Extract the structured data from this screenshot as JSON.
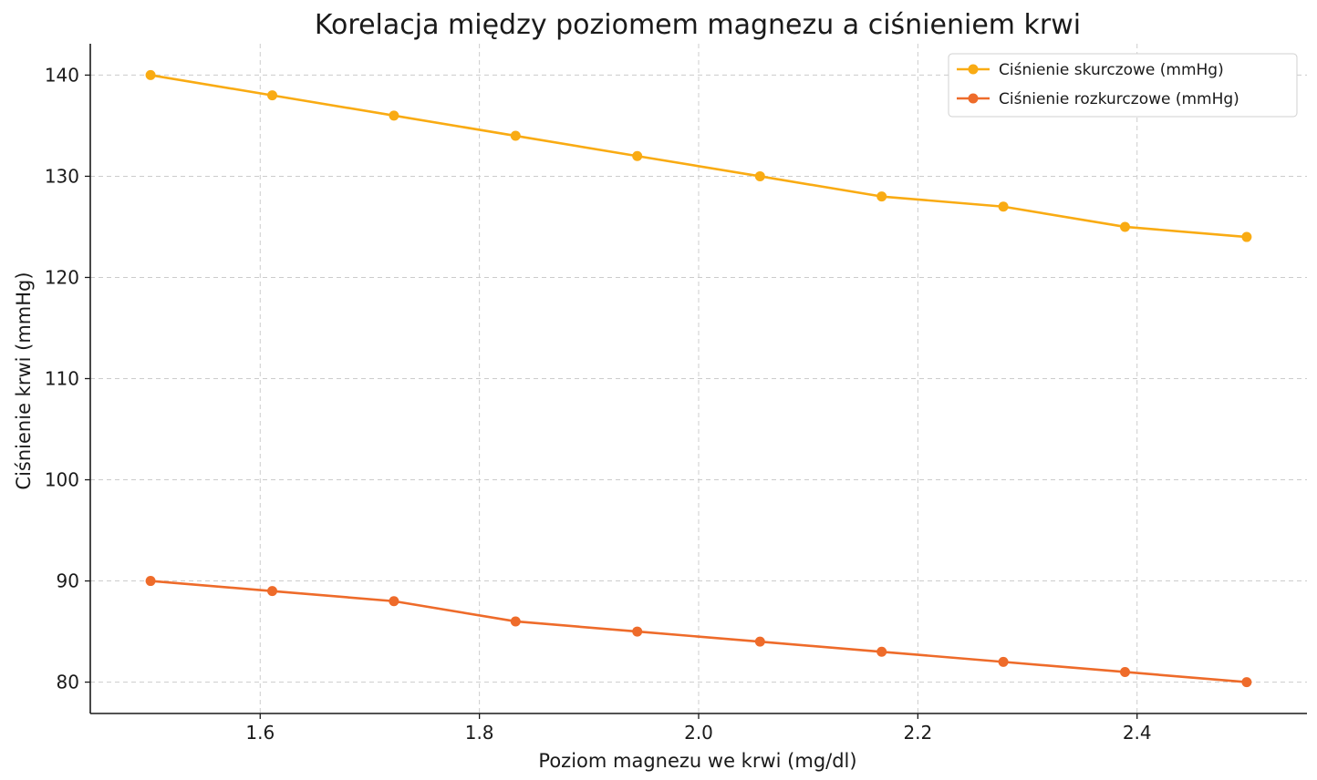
{
  "chart_data": {
    "type": "line",
    "title": "Korelacja między poziomem magnezu a ciśnieniem krwi",
    "xlabel": "Poziom magnezu we krwi (mg/dl)",
    "ylabel": "Ciśnienie krwi (mmHg)",
    "x": [
      1.5,
      1.611,
      1.722,
      1.833,
      1.944,
      2.056,
      2.167,
      2.278,
      2.389,
      2.5
    ],
    "xlim": [
      1.445,
      2.555
    ],
    "ylim": [
      76.9,
      143.1
    ],
    "xticks": [
      1.6,
      1.8,
      2.0,
      2.2,
      2.4
    ],
    "xtick_labels": [
      "1.6",
      "1.8",
      "2.0",
      "2.2",
      "2.4"
    ],
    "yticks": [
      80,
      90,
      100,
      110,
      120,
      130,
      140
    ],
    "ytick_labels": [
      "80",
      "90",
      "100",
      "110",
      "120",
      "130",
      "140"
    ],
    "grid": true,
    "legend_position": "top-right",
    "series": [
      {
        "name": "Ciśnienie skurczowe (mmHg)",
        "color": "#F9AB13",
        "values": [
          140,
          138,
          136,
          134,
          132,
          130,
          128,
          127,
          125,
          124
        ]
      },
      {
        "name": "Ciśnienie rozkurczowe (mmHg)",
        "color": "#EE6B2A",
        "values": [
          90,
          89,
          88,
          86,
          85,
          84,
          83,
          82,
          81,
          80
        ]
      }
    ]
  }
}
